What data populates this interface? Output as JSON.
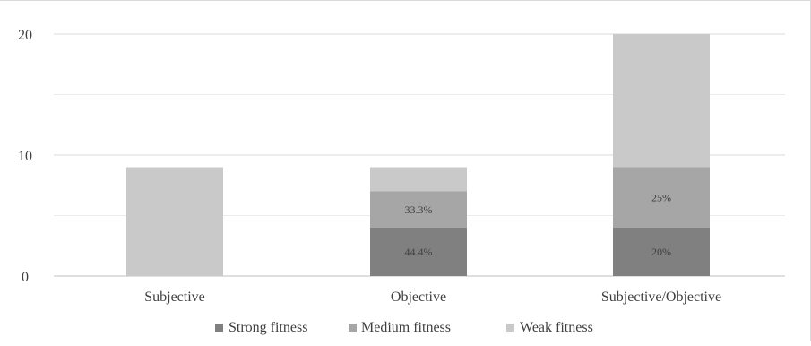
{
  "chart_data": {
    "type": "bar",
    "stacked": true,
    "title": "",
    "xlabel": "",
    "ylabel": "",
    "categories": [
      "Subjective",
      "Objective",
      "Subjective/Objective"
    ],
    "series": [
      {
        "name": "Strong fitness",
        "values": [
          0,
          4,
          4
        ],
        "labels": [
          "",
          "44.4%",
          "20%"
        ],
        "color": "#808080"
      },
      {
        "name": "Medium fitness",
        "values": [
          0,
          3,
          5
        ],
        "labels": [
          "",
          "33.3%",
          "25%"
        ],
        "color": "#a6a6a6"
      },
      {
        "name": "Weak fitness",
        "values": [
          9,
          2,
          11
        ],
        "labels": [
          "",
          "",
          ""
        ],
        "color": "#c9c9c9"
      }
    ],
    "ylim": [
      0,
      20
    ],
    "yticks": [
      0,
      10,
      20
    ],
    "ytick_labels": [
      "0",
      "10",
      "20"
    ],
    "minor_gridlines": [
      5,
      15
    ],
    "grid": true,
    "legend_position": "bottom"
  }
}
